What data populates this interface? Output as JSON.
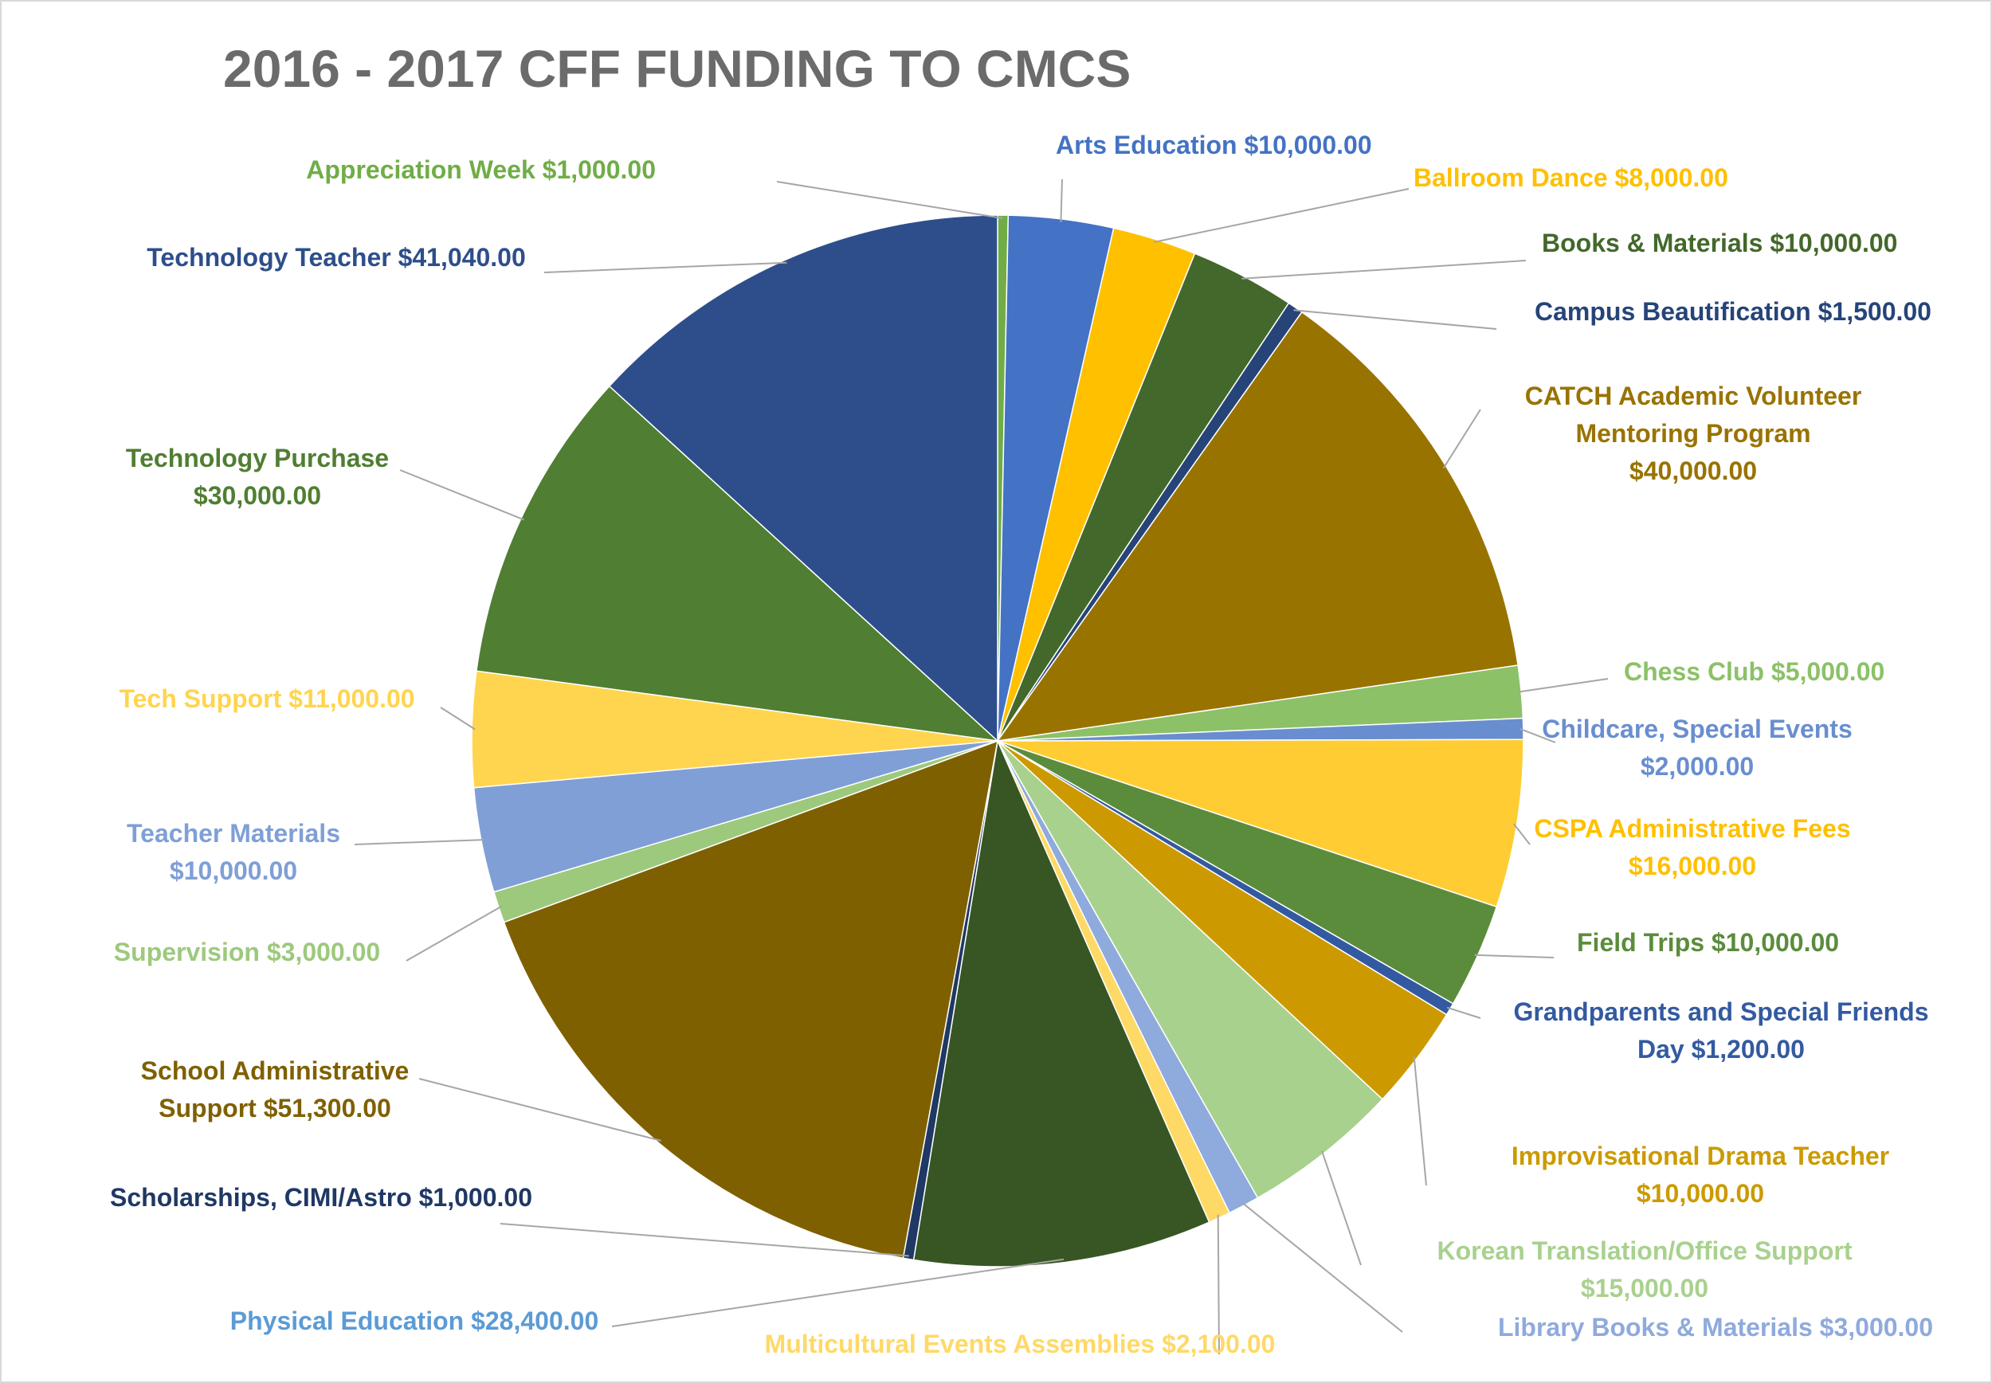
{
  "chart_data": {
    "type": "pie",
    "title": "2016 - 2017 CFF FUNDING TO CMCS",
    "slices": [
      {
        "name": "Appreciation Week",
        "amount": "$1,000.00",
        "value": 1000,
        "color": "#70ad47"
      },
      {
        "name": "Arts Education",
        "amount": "$10,000.00",
        "value": 10000,
        "color": "#4472c4"
      },
      {
        "name": "Ballroom Dance",
        "amount": "$8,000.00",
        "value": 8000,
        "color": "#ffc000"
      },
      {
        "name": "Books & Materials",
        "amount": "$10,000.00",
        "value": 10000,
        "color": "#43682b"
      },
      {
        "name": "Campus Beautification",
        "amount": "$1,500.00",
        "value": 1500,
        "color": "#264478"
      },
      {
        "name": "CATCH Academic Volunteer Mentoring Program",
        "amount": "$40,000.00",
        "value": 40000,
        "color": "#997300"
      },
      {
        "name": "Chess Club",
        "amount": "$5,000.00",
        "value": 5000,
        "color": "#8cc168"
      },
      {
        "name": "Childcare, Special Events",
        "amount": "$2,000.00",
        "value": 2000,
        "color": "#698ed0"
      },
      {
        "name": "CSPA Administrative Fees",
        "amount": "$16,000.00",
        "value": 16000,
        "color": "#ffcd33"
      },
      {
        "name": "Field Trips",
        "amount": "$10,000.00",
        "value": 10000,
        "color": "#5b8c3c"
      },
      {
        "name": "Grandparents and Special Friends Day",
        "amount": "$1,200.00",
        "value": 1200,
        "color": "#335aa1"
      },
      {
        "name": "Improvisational Drama Teacher",
        "amount": "$10,000.00",
        "value": 10000,
        "color": "#cc9a00"
      },
      {
        "name": "Korean Translation/Office Support",
        "amount": "$15,000.00",
        "value": 15000,
        "color": "#a9d18e"
      },
      {
        "name": "Library Books & Materials",
        "amount": "$3,000.00",
        "value": 3000,
        "color": "#8faadc"
      },
      {
        "name": "Multicultural Events Assemblies",
        "amount": "$2,100.00",
        "value": 2100,
        "color": "#ffd966"
      },
      {
        "name": "Physical Education",
        "amount": "$28,400.00",
        "value": 28400,
        "color": "#375623"
      },
      {
        "name": "Scholarships, CIMI/Astro",
        "amount": "$1,000.00",
        "value": 1000,
        "color": "#1f3864"
      },
      {
        "name": "School Administrative Support",
        "amount": "$51,300.00",
        "value": 51300,
        "color": "#7f6000"
      },
      {
        "name": "Supervision",
        "amount": "$3,000.00",
        "value": 3000,
        "color": "#9dc97d"
      },
      {
        "name": "Teacher Materials",
        "amount": "$10,000.00",
        "value": 10000,
        "color": "#7f9fd6"
      },
      {
        "name": "Tech Support",
        "amount": "$11,000.00",
        "value": 11000,
        "color": "#ffd54f"
      },
      {
        "name": "Technology Purchase",
        "amount": "$30,000.00",
        "value": 30000,
        "color": "#507e32"
      },
      {
        "name": "Technology Teacher",
        "amount": "$41,040.00",
        "value": 41040,
        "color": "#2e4e8b"
      }
    ],
    "labels": [
      {
        "lines": [
          "Appreciation Week  $1,000.00"
        ],
        "color": "#70ad47"
      },
      {
        "lines": [
          "Arts Education  $10,000.00"
        ],
        "color": "#4472c4"
      },
      {
        "lines": [
          "Ballroom Dance  $8,000.00"
        ],
        "color": "#ffc000"
      },
      {
        "lines": [
          "Books & Materials  $10,000.00"
        ],
        "color": "#43682b"
      },
      {
        "lines": [
          "Campus Beautification  $1,500.00"
        ],
        "color": "#264478"
      },
      {
        "lines": [
          "CATCH Academic Volunteer",
          "Mentoring Program",
          "$40,000.00"
        ],
        "color": "#997300"
      },
      {
        "lines": [
          "Chess Club  $5,000.00"
        ],
        "color": "#8cc168"
      },
      {
        "lines": [
          "Childcare, Special Events",
          "$2,000.00"
        ],
        "color": "#698ed0"
      },
      {
        "lines": [
          "CSPA Administrative Fees",
          "$16,000.00"
        ],
        "color": "#ffc000"
      },
      {
        "lines": [
          "Field Trips   $10,000.00"
        ],
        "color": "#5b8c3c"
      },
      {
        "lines": [
          "Grandparents and Special Friends",
          "Day  $1,200.00"
        ],
        "color": "#335aa1"
      },
      {
        "lines": [
          "Improvisational Drama Teacher",
          "$10,000.00"
        ],
        "color": "#cc9a00"
      },
      {
        "lines": [
          "Korean Translation/Office Support",
          "$15,000.00"
        ],
        "color": "#a9d18e"
      },
      {
        "lines": [
          "Library Books & Materials  $3,000.00"
        ],
        "color": "#8faadc"
      },
      {
        "lines": [
          "Multicultural Events Assemblies  $2,100.00"
        ],
        "color": "#ffd966"
      },
      {
        "lines": [
          "Physical Education  $28,400.00"
        ],
        "color": "#5b9bd5"
      },
      {
        "lines": [
          "Scholarships, CIMI/Astro  $1,000.00"
        ],
        "color": "#1f3864"
      },
      {
        "lines": [
          "School Administrative",
          "Support  $51,300.00"
        ],
        "color": "#7f6000"
      },
      {
        "lines": [
          "Supervision  $3,000.00"
        ],
        "color": "#9dc97d"
      },
      {
        "lines": [
          "Teacher Materials",
          "$10,000.00"
        ],
        "color": "#7f9fd6"
      },
      {
        "lines": [
          "Tech Support  $11,000.00"
        ],
        "color": "#ffd54f"
      },
      {
        "lines": [
          "Technology Purchase",
          "$30,000.00"
        ],
        "color": "#507e32"
      },
      {
        "lines": [
          "Technology Teacher  $41,040.00"
        ],
        "color": "#2e4e8b"
      }
    ]
  }
}
